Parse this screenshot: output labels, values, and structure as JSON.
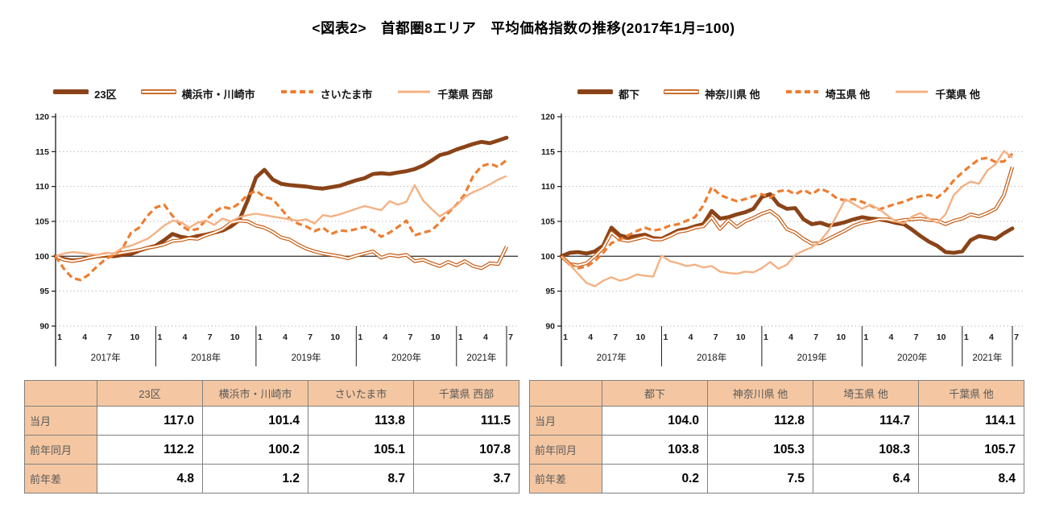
{
  "title": "<図表2>　首都圏8エリア　平均価格指数の推移(2017年1月=100)",
  "colors": {
    "series_dark": "#8A4318",
    "series_medium": "#C55A11",
    "series_accent": "#ED7D31",
    "series_light": "#F4B183",
    "grid": "#BDBDBD",
    "baseline": "#404040",
    "axis": "#1A1A1A",
    "table_fill": "#F4C7A2",
    "table_label_text": "#595959"
  },
  "axis": {
    "ylim": [
      90,
      120
    ],
    "yticks": [
      "120",
      "115",
      "110",
      "105",
      "100",
      "95",
      "90"
    ],
    "baseline_value": 100,
    "years": [
      {
        "label": "2017年",
        "months": 12,
        "ticks": [
          "1",
          "4",
          "7",
          "10"
        ]
      },
      {
        "label": "2018年",
        "months": 12,
        "ticks": [
          "1",
          "4",
          "7",
          "10"
        ]
      },
      {
        "label": "2019年",
        "months": 12,
        "ticks": [
          "1",
          "4",
          "7",
          "10"
        ]
      },
      {
        "label": "2020年",
        "months": 12,
        "ticks": [
          "1",
          "4",
          "7",
          "10"
        ]
      },
      {
        "label": "2021年",
        "months": 7,
        "ticks": [
          "1",
          "4",
          "7"
        ]
      }
    ],
    "x_start": "2017年1月",
    "x_end": "2021年7月"
  },
  "chart_data": [
    {
      "type": "line",
      "name": "首都圏8エリア 平均価格指数(左:東京23区・横浜川崎・さいたま・千葉西部)",
      "ylim": [
        90,
        120
      ],
      "grid": true,
      "legend_position": "top",
      "series": [
        {
          "name": "23区",
          "style": "thick",
          "color": "#8A4318",
          "values": [
            100.0,
            99.6,
            99.4,
            99.5,
            99.8,
            100.0,
            100.1,
            100.0,
            100.2,
            100.3,
            100.8,
            101.2,
            101.5,
            102.3,
            103.2,
            102.8,
            102.6,
            102.9,
            103.1,
            103.4,
            103.7,
            104.3,
            105.2,
            108.0,
            111.3,
            112.4,
            111.0,
            110.4,
            110.2,
            110.1,
            110.0,
            109.8,
            109.7,
            109.9,
            110.1,
            110.5,
            110.9,
            111.2,
            111.8,
            111.9,
            111.8,
            112.0,
            112.2,
            112.5,
            113.0,
            113.7,
            114.5,
            114.8,
            115.3,
            115.7,
            116.1,
            116.4,
            116.2,
            116.6,
            117.0
          ]
        },
        {
          "name": "横浜市・川崎市",
          "style": "double",
          "color": "#C55A11",
          "values": [
            100.0,
            99.5,
            99.3,
            99.5,
            99.8,
            100.0,
            100.2,
            100.3,
            100.5,
            100.7,
            100.9,
            101.2,
            101.4,
            101.7,
            102.2,
            102.3,
            102.6,
            102.5,
            103.0,
            103.4,
            103.9,
            104.8,
            105.1,
            105.0,
            104.4,
            104.1,
            103.5,
            102.7,
            102.4,
            101.7,
            101.1,
            100.7,
            100.4,
            100.2,
            100.0,
            99.7,
            100.1,
            100.4,
            100.7,
            99.8,
            100.2,
            100.0,
            100.2,
            99.3,
            99.5,
            99.0,
            98.6,
            99.2,
            98.7,
            99.3,
            98.6,
            98.3,
            99.0,
            98.9,
            101.4
          ]
        },
        {
          "name": "さいたま市",
          "style": "dashed",
          "color": "#ED7D31",
          "values": [
            100.0,
            98.2,
            96.9,
            96.6,
            97.4,
            98.6,
            99.6,
            100.2,
            101.1,
            103.3,
            104.1,
            105.8,
            107.0,
            107.4,
            105.8,
            104.4,
            103.7,
            103.9,
            105.2,
            106.3,
            107.1,
            106.8,
            107.6,
            108.8,
            109.4,
            108.5,
            108.2,
            106.8,
            105.4,
            104.7,
            104.3,
            103.6,
            104.1,
            103.2,
            103.7,
            103.6,
            103.9,
            104.2,
            103.7,
            102.8,
            103.4,
            104.2,
            105.1,
            103.0,
            103.4,
            103.7,
            104.8,
            106.2,
            107.4,
            108.9,
            111.5,
            112.9,
            113.3,
            112.8,
            113.8
          ]
        },
        {
          "name": "千葉県 西部",
          "style": "thin",
          "color": "#F4B183",
          "values": [
            100.0,
            100.4,
            100.6,
            100.5,
            100.3,
            100.2,
            100.5,
            100.4,
            101.2,
            101.5,
            102.0,
            102.5,
            103.4,
            104.4,
            105.1,
            104.9,
            104.1,
            104.8,
            105.1,
            104.5,
            105.4,
            105.0,
            105.6,
            105.9,
            106.1,
            105.9,
            105.7,
            105.5,
            105.3,
            105.1,
            105.3,
            104.7,
            105.9,
            105.7,
            106.0,
            106.4,
            106.8,
            107.2,
            106.9,
            106.6,
            107.9,
            107.4,
            107.8,
            110.2,
            108.0,
            106.8,
            105.7,
            106.5,
            107.3,
            108.5,
            109.2,
            109.7,
            110.3,
            111.0,
            111.5
          ]
        }
      ]
    },
    {
      "type": "line",
      "name": "首都圏8エリア 平均価格指数(右:都下・神奈川県他・埼玉県他・千葉県他)",
      "ylim": [
        90,
        120
      ],
      "grid": true,
      "legend_position": "top",
      "series": [
        {
          "name": "都下",
          "style": "thick",
          "color": "#8A4318",
          "values": [
            100.0,
            100.5,
            100.6,
            100.4,
            100.7,
            101.5,
            104.1,
            103.0,
            102.7,
            102.9,
            103.1,
            102.6,
            102.5,
            103.1,
            103.7,
            103.9,
            104.3,
            104.6,
            106.5,
            105.4,
            105.6,
            106.0,
            106.3,
            106.8,
            108.5,
            108.9,
            107.4,
            106.8,
            106.9,
            105.3,
            104.6,
            104.8,
            104.4,
            104.6,
            104.9,
            105.3,
            105.6,
            105.4,
            105.3,
            105.1,
            104.8,
            104.6,
            103.8,
            102.9,
            102.1,
            101.5,
            100.6,
            100.5,
            100.7,
            102.3,
            102.9,
            102.7,
            102.5,
            103.3,
            104.0
          ]
        },
        {
          "name": "神奈川県 他",
          "style": "double",
          "color": "#C55A11",
          "values": [
            100.0,
            98.9,
            98.7,
            99.0,
            100.0,
            101.2,
            103.4,
            102.4,
            102.2,
            102.5,
            102.8,
            102.4,
            102.4,
            102.9,
            103.5,
            103.7,
            104.1,
            104.3,
            105.6,
            103.9,
            105.2,
            104.2,
            105.0,
            105.5,
            106.1,
            106.5,
            105.6,
            103.9,
            103.4,
            102.5,
            101.8,
            101.9,
            102.5,
            103.1,
            103.7,
            104.4,
            104.8,
            105.0,
            105.3,
            105.3,
            105.0,
            105.2,
            105.3,
            105.4,
            105.2,
            105.1,
            104.6,
            105.1,
            105.4,
            106.0,
            105.7,
            106.2,
            106.8,
            108.8,
            112.8
          ]
        },
        {
          "name": "埼玉県 他",
          "style": "dashed",
          "color": "#ED7D31",
          "values": [
            100.0,
            98.9,
            98.3,
            98.5,
            99.3,
            100.5,
            101.9,
            102.4,
            103.0,
            103.6,
            104.1,
            103.7,
            103.9,
            104.4,
            104.6,
            105.1,
            105.6,
            107.3,
            109.9,
            108.8,
            108.3,
            107.9,
            108.2,
            108.6,
            108.9,
            108.4,
            109.3,
            109.5,
            108.9,
            109.5,
            108.9,
            109.7,
            109.2,
            108.3,
            108.0,
            108.2,
            107.8,
            107.3,
            106.7,
            107.1,
            107.5,
            107.8,
            108.3,
            108.6,
            108.8,
            108.4,
            109.4,
            110.9,
            112.0,
            113.0,
            113.9,
            114.1,
            113.5,
            113.6,
            114.7
          ]
        },
        {
          "name": "千葉県 他",
          "style": "thin",
          "color": "#F4B183",
          "values": [
            100.0,
            98.8,
            97.5,
            96.2,
            95.7,
            96.5,
            97.0,
            96.5,
            96.8,
            97.4,
            97.2,
            97.1,
            100.1,
            99.3,
            99.0,
            98.6,
            98.8,
            98.4,
            98.6,
            97.8,
            97.6,
            97.5,
            97.8,
            97.7,
            98.3,
            99.2,
            98.2,
            98.8,
            100.2,
            100.8,
            101.3,
            102.2,
            103.7,
            105.9,
            108.2,
            107.5,
            106.8,
            107.4,
            106.8,
            105.9,
            105.0,
            104.7,
            105.7,
            106.2,
            105.4,
            104.8,
            106.0,
            108.8,
            110.0,
            110.7,
            110.4,
            112.3,
            113.2,
            115.1,
            114.1
          ]
        }
      ]
    }
  ],
  "tables": [
    {
      "columns": [
        "23区",
        "横浜市・川崎市",
        "さいたま市",
        "千葉県 西部"
      ],
      "rows": [
        {
          "label": "当月",
          "values": [
            "117.0",
            "101.4",
            "113.8",
            "111.5"
          ]
        },
        {
          "label": "前年同月",
          "values": [
            "112.2",
            "100.2",
            "105.1",
            "107.8"
          ]
        },
        {
          "label": "前年差",
          "values": [
            "4.8",
            "1.2",
            "8.7",
            "3.7"
          ]
        }
      ]
    },
    {
      "columns": [
        "都下",
        "神奈川県 他",
        "埼玉県 他",
        "千葉県 他"
      ],
      "rows": [
        {
          "label": "当月",
          "values": [
            "104.0",
            "112.8",
            "114.7",
            "114.1"
          ]
        },
        {
          "label": "前年同月",
          "values": [
            "103.8",
            "105.3",
            "108.3",
            "105.7"
          ]
        },
        {
          "label": "前年差",
          "values": [
            "0.2",
            "7.5",
            "6.4",
            "8.4"
          ]
        }
      ]
    }
  ]
}
